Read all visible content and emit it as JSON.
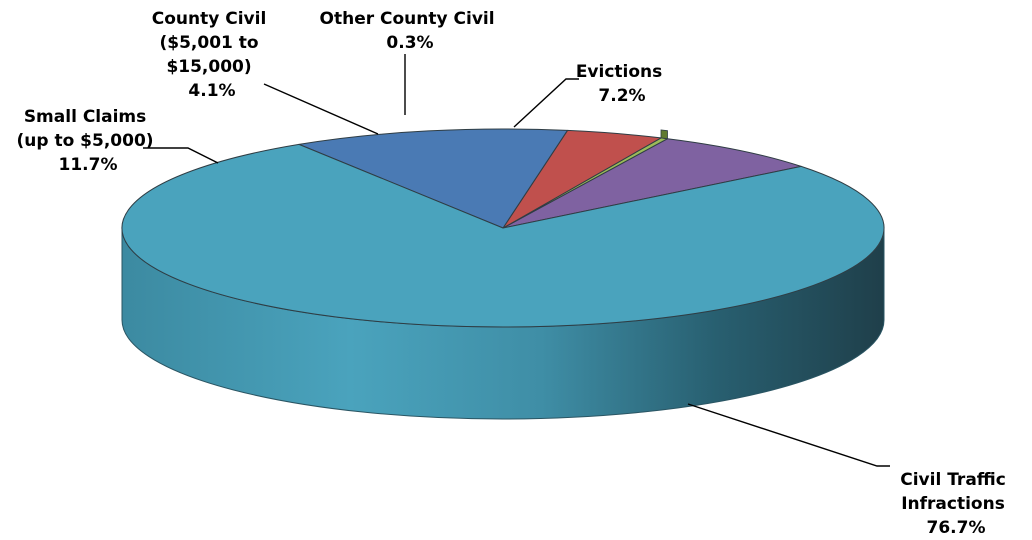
{
  "chart_data": {
    "type": "pie",
    "style": "3d",
    "slices": [
      {
        "id": "civil-traffic",
        "label_lines": [
          "Civil Traffic",
          "Infractions"
        ],
        "pct_label": "76.7%",
        "value": 76.7,
        "color": "#4aa3bd"
      },
      {
        "id": "small-claims",
        "label_lines": [
          "Small Claims",
          "(up to $5,000)"
        ],
        "pct_label": "11.7%",
        "value": 11.7,
        "color": "#4a7ab4"
      },
      {
        "id": "county-civil",
        "label_lines": [
          "County Civil",
          "($5,001 to",
          "$15,000)"
        ],
        "pct_label": "4.1%",
        "value": 4.1,
        "color": "#c0504d"
      },
      {
        "id": "other-county-civil",
        "label_lines": [
          "Other County Civil"
        ],
        "pct_label": "0.3%",
        "value": 0.3,
        "color": "#9bbb59"
      },
      {
        "id": "evictions",
        "label_lines": [
          "Evictions"
        ],
        "pct_label": "7.2%",
        "value": 7.2,
        "color": "#7f62a1"
      }
    ]
  }
}
